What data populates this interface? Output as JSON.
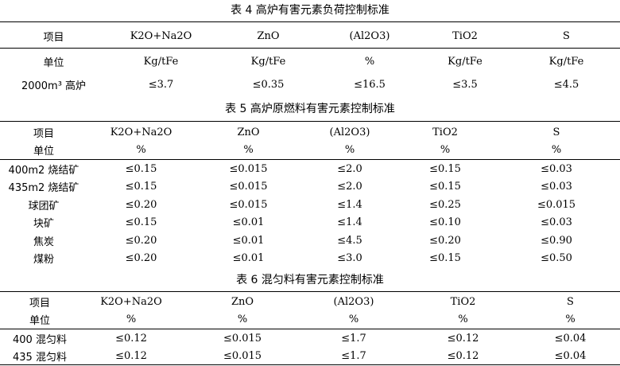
{
  "table4": {
    "title": "表 4    高炉有害元素负荷控制标准",
    "headers": [
      "项目",
      "K2O+Na2O",
      "ZnO",
      "(Al2O3)",
      "TiO2",
      "S"
    ],
    "rows": [
      [
        "单位",
        "Kg/tFe",
        "Kg/tFe",
        "%",
        "Kg/tFe",
        "Kg/tFe"
      ],
      [
        "2000m³ 高炉",
        "≤3.7",
        "≤0.35",
        "≤16.5",
        "≤3.5",
        "≤4.5"
      ]
    ]
  },
  "table5": {
    "title": "表 5    高炉原燃料有害元素控制标准",
    "headers": [
      "项目",
      "K2O+Na2O",
      "ZnO",
      "(Al2O3)",
      "TiO2",
      "S"
    ],
    "rows": [
      [
        "单位",
        "%",
        "%",
        "%",
        "%",
        "%"
      ],
      [
        "400m2 烧结矿",
        "≤0.15",
        "≤0.015",
        "≤2.0",
        "≤0.15",
        "≤0.03"
      ],
      [
        "435m2 烧结矿",
        "≤0.15",
        "≤0.015",
        "≤2.0",
        "≤0.15",
        "≤0.03"
      ],
      [
        "球团矿",
        "≤0.20",
        "≤0.015",
        "≤1.4",
        "≤0.25",
        "≤0.015"
      ],
      [
        "块矿",
        "≤0.15",
        "≤0.01",
        "≤1.4",
        "≤0.10",
        "≤0.03"
      ],
      [
        "焦炭",
        "≤0.20",
        "≤0.01",
        "≤4.5",
        "≤0.20",
        "≤0.90"
      ],
      [
        "煤粉",
        "≤0.20",
        "≤0.01",
        "≤3.0",
        "≤0.15",
        "≤0.50"
      ]
    ]
  },
  "table6": {
    "title": "表 6    混匀料有害元素控制标准",
    "headers": [
      "项目",
      "K2O+Na2O",
      "ZnO",
      "(Al2O3)",
      "TiO2",
      "S"
    ],
    "rows": [
      [
        "单位",
        "%",
        "%",
        "%",
        "%",
        "%"
      ],
      [
        "400 混匀料",
        "≤0.12",
        "≤0.015",
        "≤1.7",
        "≤0.12",
        "≤0.04"
      ],
      [
        "435 混匀料",
        "≤0.12",
        "≤0.015",
        "≤1.7",
        "≤0.12",
        "≤0.04"
      ]
    ]
  }
}
